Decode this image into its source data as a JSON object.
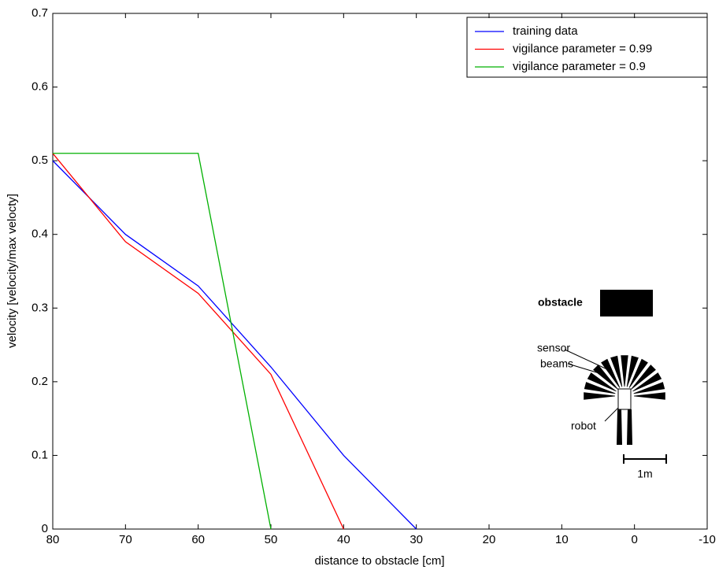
{
  "chart_data": {
    "type": "line",
    "xlabel": "distance to obstacle [cm]",
    "ylabel": "velocity [velocity/max velocty]",
    "xlim": [
      80,
      -10
    ],
    "xticks": [
      80,
      70,
      60,
      50,
      40,
      30,
      20,
      10,
      0,
      -10
    ],
    "ylim": [
      0,
      0.7
    ],
    "yticks": [
      0,
      0.1,
      0.2,
      0.3,
      0.4,
      0.5,
      0.6,
      0.7
    ],
    "legend": "upper right",
    "series": [
      {
        "name": "training data",
        "color": "#0000ff",
        "x": [
          80,
          70,
          60,
          50,
          40,
          30
        ],
        "values": [
          0.5,
          0.4,
          0.33,
          0.22,
          0.1,
          0
        ]
      },
      {
        "name": "vigilance parameter = 0.99",
        "color": "#ff0000",
        "x": [
          80,
          70,
          60,
          50,
          40
        ],
        "values": [
          0.51,
          0.39,
          0.32,
          0.21,
          0
        ]
      },
      {
        "name": "vigilance parameter = 0.9",
        "color": "#00b000",
        "x": [
          80,
          60,
          50
        ],
        "values": [
          0.51,
          0.51,
          0
        ]
      }
    ],
    "annotations": [
      "obstacle",
      "sensor",
      "beams",
      "robot",
      "1m"
    ]
  }
}
